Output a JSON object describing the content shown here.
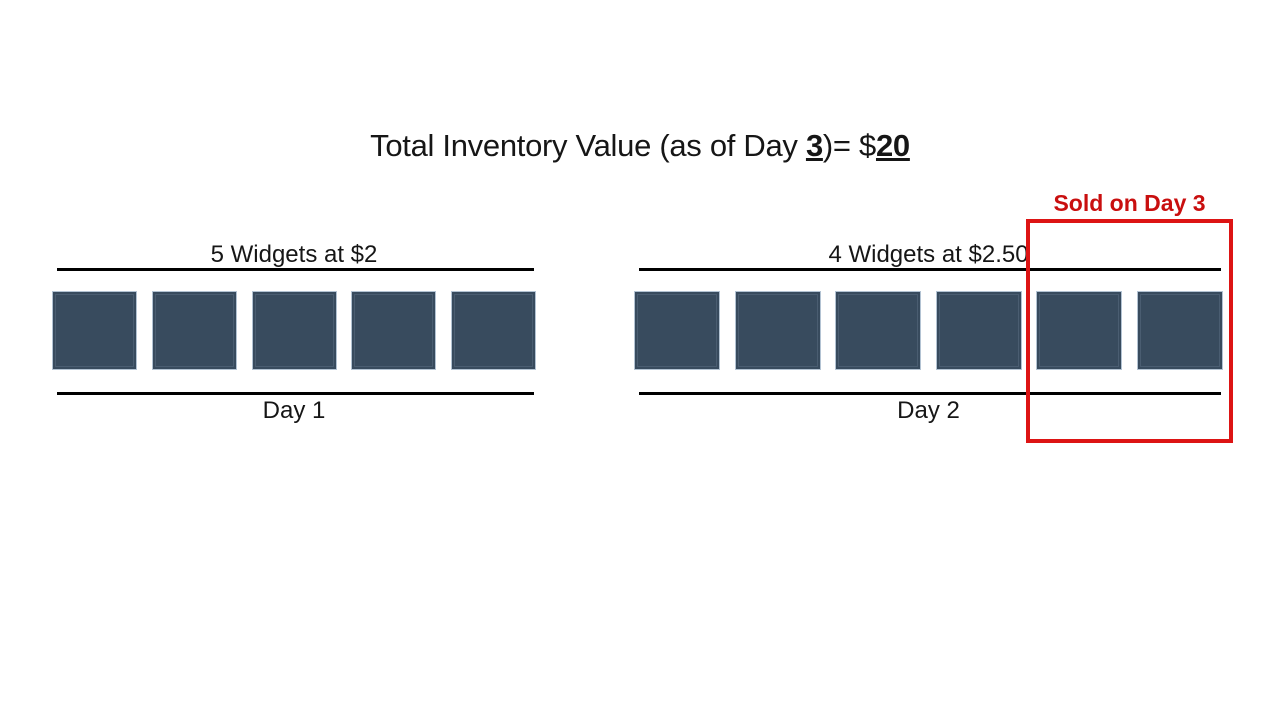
{
  "title": {
    "prefix": "Total Inventory Value (as of Day ",
    "day_number": "3",
    "middle": ")= $",
    "total_value": "20"
  },
  "groups": [
    {
      "label": "5 Widgets at $2",
      "day_label": "Day 1",
      "squares_shown": 5
    },
    {
      "label": "4 Widgets at $2.50",
      "day_label": "Day 2",
      "squares_shown": 6
    }
  ],
  "annotation": {
    "label": "Sold on Day 3",
    "boxed_squares": 2
  },
  "colors": {
    "background": "#ffffff",
    "line": "#000000",
    "widget_fill": "#384b5e",
    "widget_edge": "#b3c3d3",
    "widget_bevel": "#4a5d71",
    "annotation_red": "#dd1414",
    "annotation_text": "#c90f0f"
  }
}
